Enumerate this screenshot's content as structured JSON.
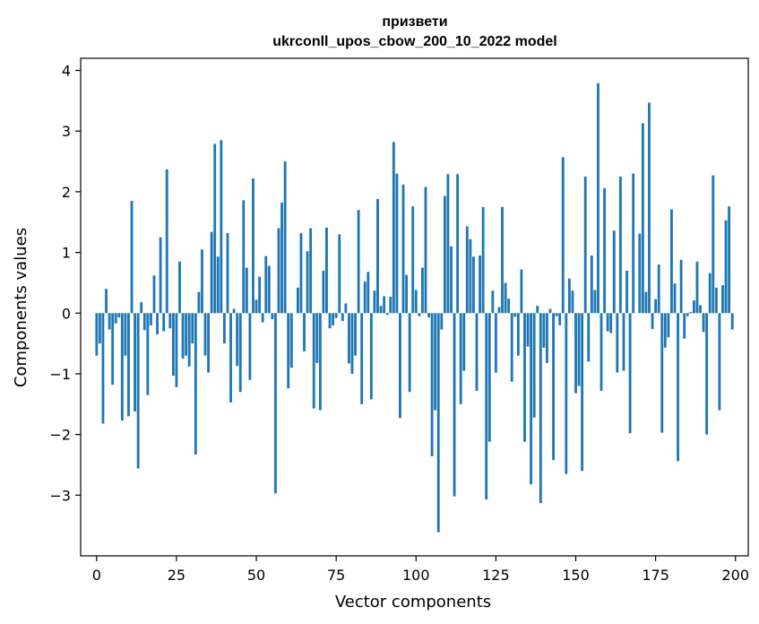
{
  "chart_data": {
    "type": "bar",
    "title_line1": "призвети",
    "title_line2": "ukrconll_upos_cbow_200_10_2022 model",
    "xlabel": "Vector components",
    "ylabel": "Components values",
    "xlim": [
      -5,
      204
    ],
    "ylim": [
      -4.0,
      4.2
    ],
    "xticks": [
      0,
      25,
      50,
      75,
      100,
      125,
      150,
      175,
      200
    ],
    "yticks": [
      -3,
      -2,
      -1,
      0,
      1,
      2,
      3,
      4
    ],
    "ytick_labels": [
      "−3",
      "−2",
      "−1",
      "0",
      "1",
      "2",
      "3",
      "4"
    ],
    "bar_color": "#1f77b4",
    "values": [
      -0.7,
      -0.5,
      -1.82,
      0.4,
      -0.27,
      -1.18,
      -0.17,
      -0.07,
      -1.77,
      -0.7,
      -1.7,
      1.85,
      -1.62,
      -2.56,
      0.18,
      -0.28,
      -1.35,
      -0.2,
      0.62,
      -0.35,
      1.25,
      -0.3,
      2.37,
      -0.25,
      -1.03,
      -1.22,
      0.85,
      -0.75,
      -0.7,
      -0.88,
      -0.5,
      -2.33,
      0.35,
      1.05,
      -0.7,
      -0.98,
      1.34,
      2.79,
      0.93,
      2.85,
      -0.5,
      1.32,
      -1.47,
      0.07,
      -0.87,
      -1.3,
      1.86,
      0.75,
      -1.1,
      2.22,
      0.22,
      0.6,
      -0.15,
      0.94,
      0.78,
      -0.1,
      -2.97,
      1.4,
      1.82,
      2.5,
      -1.24,
      -0.9,
      0.0,
      0.42,
      1.32,
      -0.63,
      1.02,
      1.4,
      -1.57,
      -0.82,
      -1.6,
      0.7,
      1.41,
      -0.25,
      -0.2,
      -0.08,
      1.3,
      -0.13,
      0.16,
      -0.83,
      -1.0,
      -0.7,
      1.7,
      -1.5,
      0.52,
      0.68,
      -1.42,
      0.37,
      1.88,
      0.12,
      0.28,
      -0.03,
      0.27,
      2.82,
      2.3,
      -1.73,
      2.12,
      0.63,
      -1.3,
      1.76,
      0.38,
      -0.05,
      0.75,
      2.08,
      -0.07,
      -2.36,
      -1.6,
      -3.61,
      -0.27,
      1.93,
      2.29,
      1.1,
      -3.02,
      2.29,
      -1.5,
      -0.95,
      1.43,
      1.22,
      0.93,
      -1.28,
      0.95,
      1.75,
      -3.07,
      -2.12,
      0.37,
      -0.98,
      0.1,
      1.75,
      0.5,
      0.24,
      -1.13,
      -0.06,
      -0.7,
      0.72,
      -2.12,
      -0.55,
      -2.82,
      -1.72,
      0.12,
      -3.13,
      -0.57,
      -0.82,
      0.07,
      -2.42,
      -0.05,
      -0.2,
      2.57,
      -2.65,
      0.57,
      0.37,
      -1.32,
      -1.2,
      -2.6,
      2.25,
      -0.8,
      0.95,
      0.38,
      3.79,
      -1.28,
      2.06,
      -0.3,
      -0.33,
      1.36,
      -0.98,
      2.25,
      -0.95,
      0.7,
      -1.98,
      2.3,
      0.0,
      1.31,
      3.13,
      0.35,
      3.47,
      -0.26,
      0.23,
      0.8,
      -1.97,
      -0.57,
      -0.4,
      1.71,
      0.49,
      -2.44,
      0.88,
      -0.42,
      -0.05,
      0.02,
      0.21,
      0.85,
      0.13,
      -0.31,
      -2.0,
      0.66,
      2.27,
      0.42,
      -1.6,
      0.46,
      1.53,
      1.76,
      -0.27
    ]
  }
}
